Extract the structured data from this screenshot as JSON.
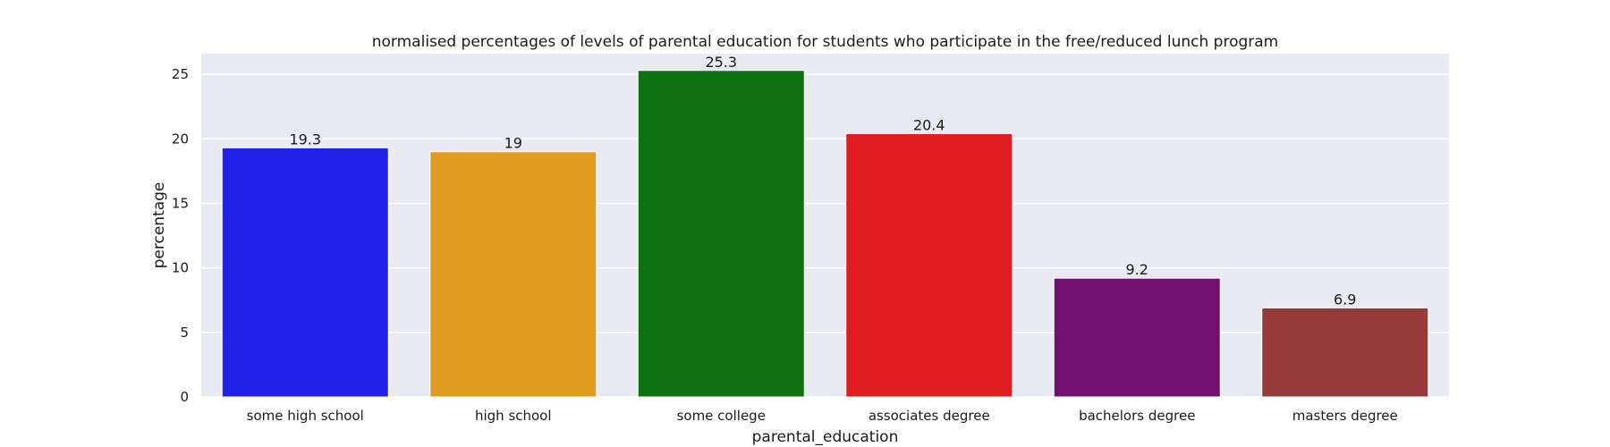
{
  "chart_data": {
    "type": "bar",
    "title": "normalised percentages of levels of parental education for students who participate in the free/reduced lunch program",
    "xlabel": "parental_education",
    "ylabel": "percentage",
    "categories": [
      "some high school",
      "high school",
      "some college",
      "associates degree",
      "bachelors degree",
      "masters degree"
    ],
    "values": [
      19.3,
      19,
      25.3,
      20.4,
      9.2,
      6.9
    ],
    "value_labels": [
      "19.3",
      "19",
      "25.3",
      "20.4",
      "9.2",
      "6.9"
    ],
    "colors": [
      "#2020e6",
      "#e09c20",
      "#0f7012",
      "#e01e22",
      "#721070",
      "#963a3a"
    ],
    "ylim": [
      0,
      26.6
    ],
    "yticks": [
      0,
      5,
      10,
      15,
      20,
      25
    ],
    "grid": true,
    "legend": "none",
    "background_color": "#eaeaf2"
  }
}
